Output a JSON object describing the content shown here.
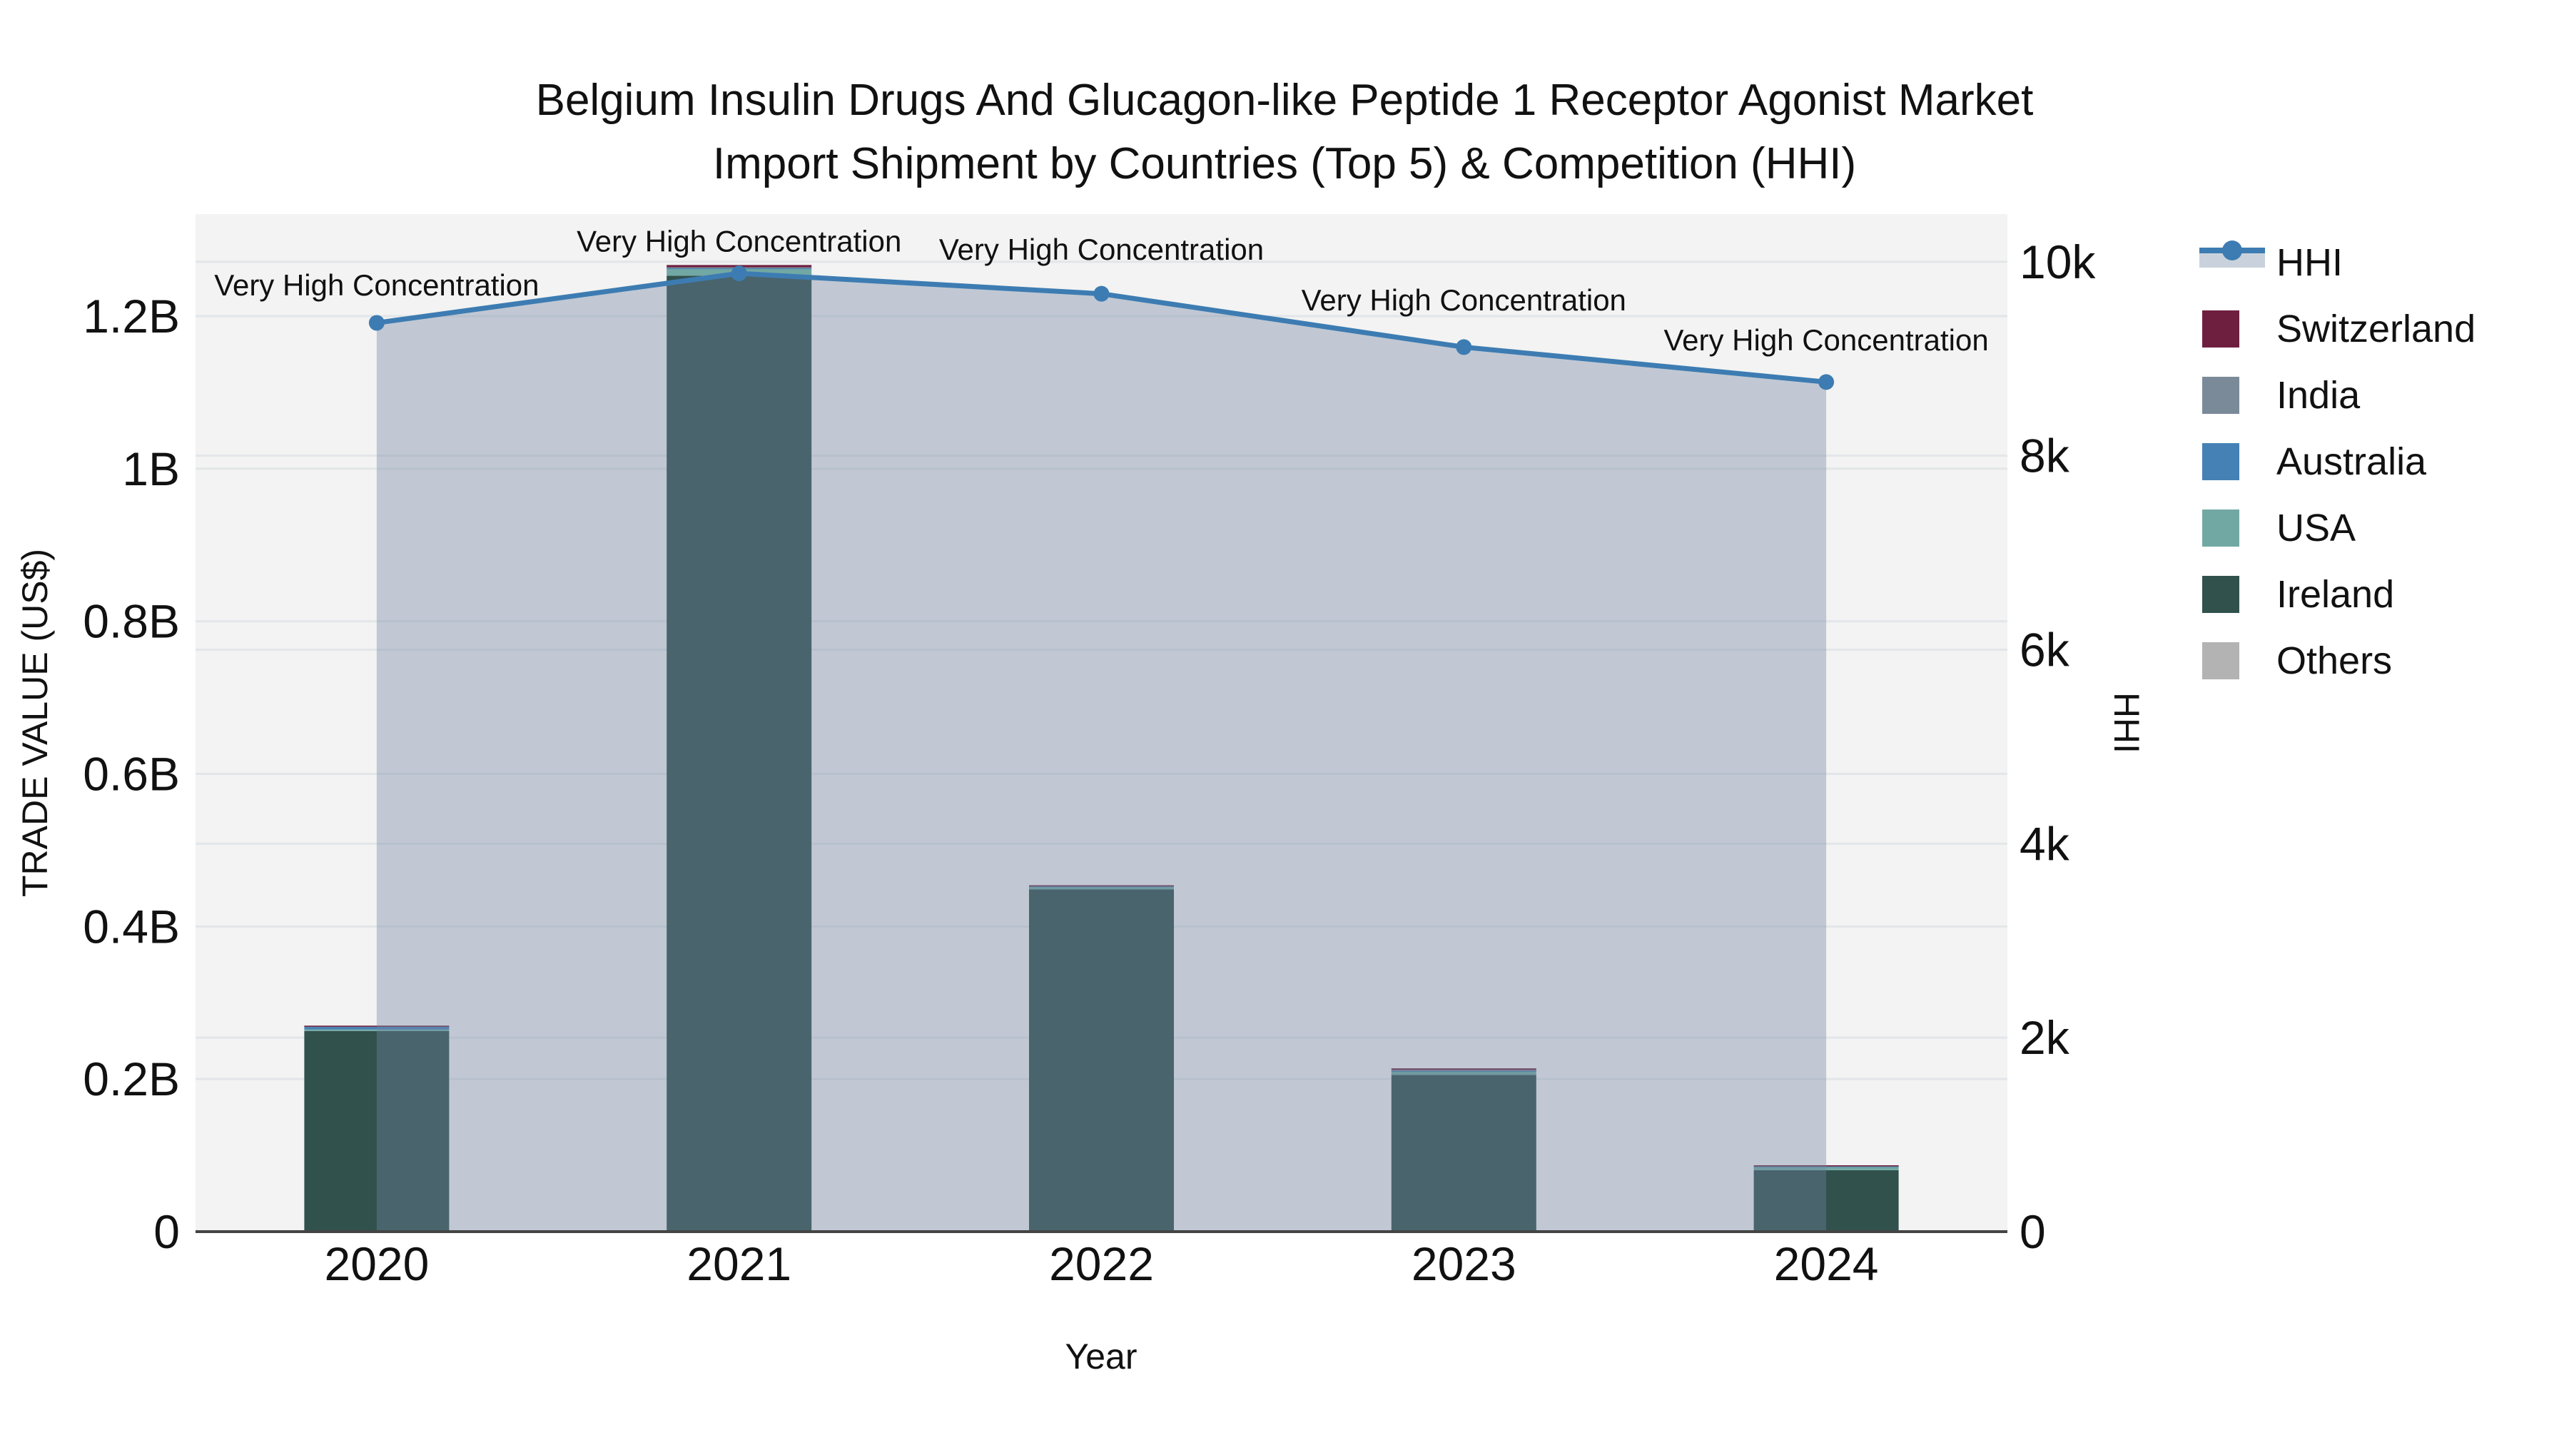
{
  "title": {
    "line1": "Belgium Insulin Drugs And Glucagon-like Peptide 1 Receptor Agonist Market",
    "line2": "Import Shipment by Countries (Top 5) & Competition (HHI)"
  },
  "axes": {
    "left": {
      "title": "TRADE VALUE (US$)",
      "tick_labels": [
        "0",
        "0.2B",
        "0.4B",
        "0.6B",
        "0.8B",
        "1B",
        "1.2B"
      ],
      "tick_values": [
        0,
        0.2,
        0.4,
        0.6,
        0.8,
        1.0,
        1.2
      ]
    },
    "right": {
      "title": "HHI",
      "tick_labels": [
        "0",
        "2k",
        "4k",
        "6k",
        "8k",
        "10k"
      ],
      "tick_values": [
        0,
        2000,
        4000,
        6000,
        8000,
        10000
      ]
    },
    "x": {
      "title": "Year",
      "categories": [
        "2020",
        "2021",
        "2022",
        "2023",
        "2024"
      ]
    }
  },
  "legend": {
    "items": [
      {
        "label": "HHI",
        "type": "line",
        "color": "#3d7cb2",
        "fill": "#c9d2dc"
      },
      {
        "label": "Switzerland",
        "type": "swatch",
        "color": "#6e1f3f"
      },
      {
        "label": "India",
        "type": "swatch",
        "color": "#7b8a99"
      },
      {
        "label": "Australia",
        "type": "swatch",
        "color": "#4581b5"
      },
      {
        "label": "USA",
        "type": "swatch",
        "color": "#72a8a3"
      },
      {
        "label": "Ireland",
        "type": "swatch",
        "color": "#31514d"
      },
      {
        "label": "Others",
        "type": "swatch",
        "color": "#b2b3b2"
      }
    ]
  },
  "colors": {
    "background": "#ffffff",
    "plot_background": "#f2f3f2",
    "gridline": "#e3e6e9",
    "axis_line": "#444444",
    "text": "#111111",
    "area_fill": "rgba(112,132,160,0.38)",
    "line": "#3d7cb2"
  },
  "chart_data": {
    "type": "bar",
    "subtype": "stacked-bars-with-line-overlay",
    "title": "Belgium Insulin Drugs And Glucagon-like Peptide 1 Receptor Agonist Market Import Shipment by Countries (Top 5) & Competition (HHI)",
    "xlabel": "Year",
    "ylabel": "TRADE VALUE (US$)",
    "y2label": "HHI",
    "categories": [
      "2020",
      "2021",
      "2022",
      "2023",
      "2024"
    ],
    "bar_value_unit": "USD billions",
    "stack_order_bottom_to_top": [
      "Others",
      "Ireland",
      "USA",
      "Australia",
      "India",
      "Switzerland"
    ],
    "series": [
      {
        "name": "Switzerland",
        "color": "#6e1f3f",
        "values": [
          0.0005,
          0.003,
          0.0005,
          0.002,
          0.0005
        ]
      },
      {
        "name": "India",
        "color": "#7b8a99",
        "values": [
          0.0005,
          0.001,
          0.0005,
          0.001,
          0.0005
        ]
      },
      {
        "name": "Australia",
        "color": "#4581b5",
        "values": [
          0.004,
          0.001,
          0.0005,
          0.0005,
          0.0005
        ]
      },
      {
        "name": "USA",
        "color": "#72a8a3",
        "values": [
          0.002,
          0.009,
          0.004,
          0.005,
          0.005
        ]
      },
      {
        "name": "Ireland",
        "color": "#31514d",
        "values": [
          0.262,
          1.252,
          0.448,
          0.205,
          0.08
        ]
      },
      {
        "name": "Others",
        "color": "#b2b3b2",
        "values": [
          0.001,
          0.001,
          0.0005,
          0.0005,
          0.0005
        ]
      }
    ],
    "bar_totals": [
      0.27,
      1.267,
      0.454,
      0.214,
      0.087
    ],
    "line_series": {
      "name": "HHI",
      "axis": "right",
      "color": "#3d7cb2",
      "values": [
        9370,
        9880,
        9670,
        9120,
        8760
      ]
    },
    "annotations": [
      {
        "x": "2020",
        "text": "Very High Concentration"
      },
      {
        "x": "2021",
        "text": "Very High Concentration"
      },
      {
        "x": "2022",
        "text": "Very High Concentration"
      },
      {
        "x": "2023",
        "text": "Very High Concentration"
      },
      {
        "x": "2024",
        "text": "Very High Concentration"
      }
    ],
    "ylim": [
      0,
      1.334
    ],
    "y2lim": [
      0,
      10490
    ],
    "grid": true,
    "legend_position": "right"
  }
}
